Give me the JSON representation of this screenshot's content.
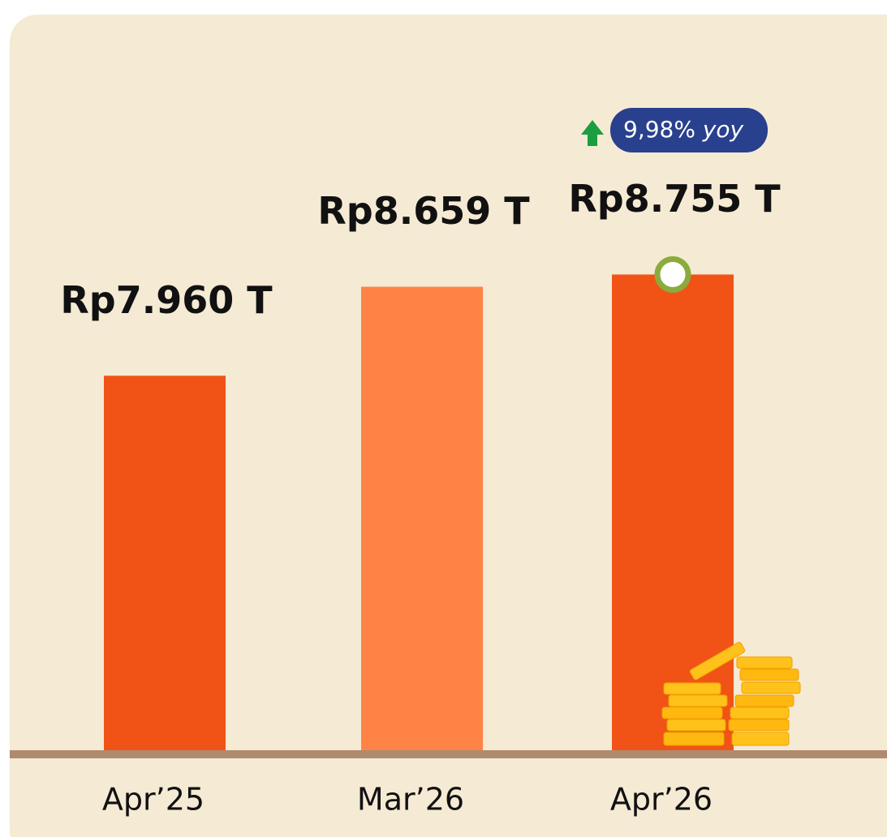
{
  "chart_data": {
    "type": "bar",
    "categories": [
      "Apr’25",
      "Mar’26",
      "Apr’26"
    ],
    "values": [
      7960,
      8659,
      8755
    ],
    "value_labels": [
      "Rp7.960 T",
      "Rp8.659 T",
      "Rp8.755 T"
    ],
    "colors": [
      "#f15317",
      "#ff8345",
      "#f15317"
    ],
    "ylim": [
      5000,
      9000
    ],
    "annotation": [
      "9,98%",
      "yoy"
    ]
  }
}
